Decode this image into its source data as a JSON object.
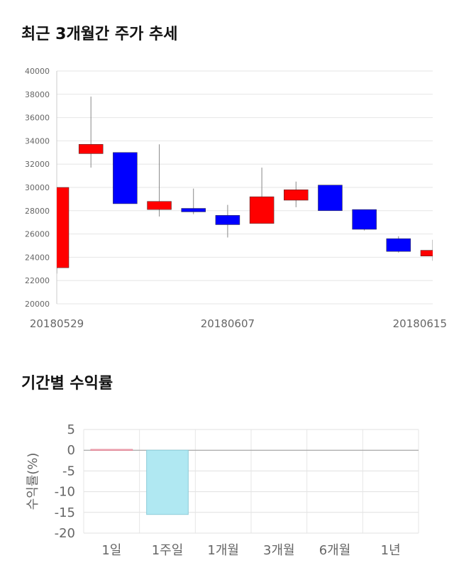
{
  "sections": {
    "price_title": "최근 3개월간 주가 추세",
    "returns_title": "기간별 수익률"
  },
  "chart_data": [
    {
      "type": "candlestick",
      "ylim": [
        20000,
        40000
      ],
      "yticks": [
        20000,
        22000,
        24000,
        26000,
        28000,
        30000,
        32000,
        34000,
        36000,
        38000,
        40000
      ],
      "xtick_labels": [
        "20180529",
        "20180607",
        "20180615"
      ],
      "grid": true,
      "colors": {
        "up": "#ff0000",
        "down": "#0000ff"
      },
      "candles": [
        {
          "open": 23100,
          "close": 30000,
          "high": 30000,
          "low": 22600
        },
        {
          "open": 32900,
          "close": 33700,
          "high": 37800,
          "low": 31700
        },
        {
          "open": 33000,
          "close": 28600,
          "high": 33000,
          "low": 28600
        },
        {
          "open": 28100,
          "close": 28800,
          "high": 33700,
          "low": 27500
        },
        {
          "open": 28200,
          "close": 27900,
          "high": 29900,
          "low": 27700
        },
        {
          "open": 27600,
          "close": 26800,
          "high": 28500,
          "low": 25700
        },
        {
          "open": 26900,
          "close": 29200,
          "high": 31700,
          "low": 26900
        },
        {
          "open": 28900,
          "close": 29800,
          "high": 30500,
          "low": 28300
        },
        {
          "open": 30200,
          "close": 28000,
          "high": 30200,
          "low": 28000
        },
        {
          "open": 28100,
          "close": 26400,
          "high": 28100,
          "low": 26300
        },
        {
          "open": 25600,
          "close": 24500,
          "high": 25800,
          "low": 24400
        },
        {
          "open": 24100,
          "close": 24600,
          "high": 25500,
          "low": 23700
        }
      ]
    },
    {
      "type": "bar",
      "categories": [
        "1일",
        "1주일",
        "1개월",
        "3개월",
        "6개월",
        "1년"
      ],
      "values": [
        0.2,
        -15.5,
        null,
        null,
        null,
        null
      ],
      "ylabel": "수익률(%)",
      "ylim": [
        -20,
        5
      ],
      "yticks": [
        5,
        0,
        -5,
        -10,
        -15,
        -20
      ],
      "grid": true,
      "colors": {
        "positive": "#ffb6c1",
        "negative": "#b0e8f2"
      }
    }
  ]
}
